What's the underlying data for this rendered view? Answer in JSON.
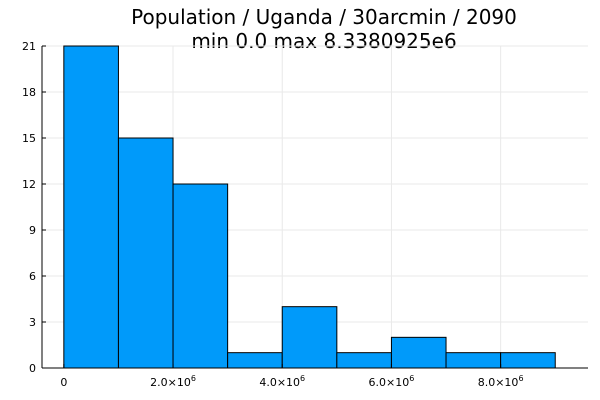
{
  "chart_data": {
    "type": "bar",
    "title": "Population / Uganda / 30arcmin / 2090",
    "subtitle": "min 0.0  max 8.3380925e6",
    "bins": [
      {
        "start": 0,
        "end": 1000000,
        "count": 21
      },
      {
        "start": 1000000,
        "end": 2000000,
        "count": 15
      },
      {
        "start": 2000000,
        "end": 3000000,
        "count": 12
      },
      {
        "start": 3000000,
        "end": 4000000,
        "count": 1
      },
      {
        "start": 4000000,
        "end": 5000000,
        "count": 4
      },
      {
        "start": 5000000,
        "end": 6000000,
        "count": 1
      },
      {
        "start": 6000000,
        "end": 7000000,
        "count": 2
      },
      {
        "start": 7000000,
        "end": 8000000,
        "count": 1
      },
      {
        "start": 8000000,
        "end": 9000000,
        "count": 1
      }
    ],
    "xlim": [
      -400000,
      9600000
    ],
    "ylim": [
      0,
      21
    ],
    "xticks": [
      {
        "value": 0,
        "mantissa": "0",
        "exponent": ""
      },
      {
        "value": 2000000,
        "mantissa": "2.0×10",
        "exponent": "6"
      },
      {
        "value": 4000000,
        "mantissa": "4.0×10",
        "exponent": "6"
      },
      {
        "value": 6000000,
        "mantissa": "6.0×10",
        "exponent": "6"
      },
      {
        "value": 8000000,
        "mantissa": "8.0×10",
        "exponent": "6"
      }
    ],
    "yticks": [
      0,
      3,
      6,
      9,
      12,
      15,
      18,
      21
    ],
    "grid": true,
    "legend": "none",
    "colors": {
      "bar_fill": "#009AFA",
      "bar_stroke": "#000000",
      "grid": "#E9E9E9",
      "axis": "#000000"
    }
  }
}
